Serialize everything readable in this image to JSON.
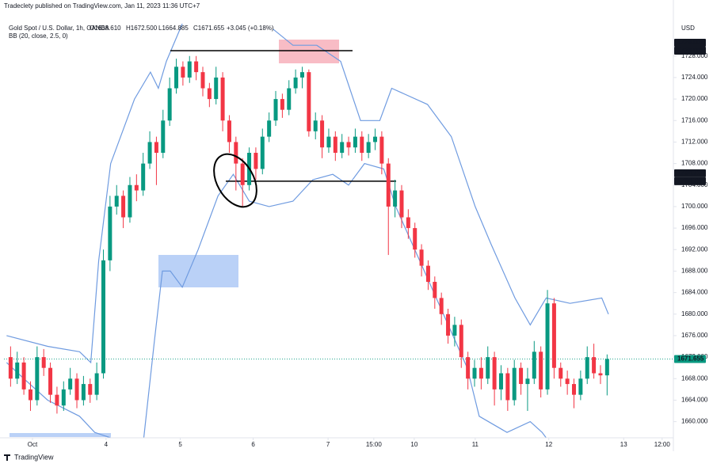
{
  "header": {
    "publisher": "Tradeclety published on TradingView.com, Jan 11, 2023 11:36 UTC+7",
    "symbol": "Gold Spot / U.S. Dollar, 1h, OANDA",
    "ohlc": [
      "O1668.610",
      "H1672.500",
      "L1664.885",
      "C1671.655",
      "+3.045 (+0.18%)"
    ],
    "currency": "USD",
    "footer": "TradingView"
  },
  "chart_data": {
    "type": "candlestick",
    "up_color": "#089981",
    "down_color": "#f23645",
    "grid": false,
    "open": [
      1672,
      1668,
      1671,
      1666,
      1664,
      1672,
      1670,
      1665,
      1663,
      1666,
      1668,
      1664,
      1667,
      1665,
      1669,
      1690,
      1700,
      1702,
      1698,
      1704,
      1703,
      1708,
      1712,
      1710,
      1716,
      1722,
      1726,
      1724,
      1727,
      1725,
      1722,
      1720,
      1724,
      1716,
      1712,
      1708,
      1704,
      1710,
      1707,
      1713,
      1716,
      1720,
      1718,
      1722,
      1724,
      1725,
      1714,
      1716,
      1711,
      1713,
      1710,
      1712,
      1711,
      1713,
      1710,
      1712,
      1713,
      1708,
      1700,
      1703,
      1698,
      1696,
      1692,
      1689,
      1686,
      1683,
      1680,
      1676,
      1678,
      1672,
      1668,
      1670,
      1668,
      1672,
      1666,
      1669,
      1664,
      1670,
      1667,
      1668,
      1673,
      1666,
      1682,
      1670,
      1668,
      1667,
      1665,
      1668,
      1672,
      1669,
      1668.61
    ],
    "high": [
      1674,
      1673,
      1672,
      1667.5,
      1674,
      1673.5,
      1671,
      1666.5,
      1667.5,
      1670,
      1669,
      1668.5,
      1668,
      1671,
      1692,
      1702,
      1704,
      1703,
      1705.5,
      1706,
      1710,
      1714,
      1713,
      1718,
      1724,
      1727.5,
      1727,
      1728,
      1728,
      1726,
      1723,
      1726,
      1725,
      1717,
      1713,
      1709,
      1711,
      1711,
      1714.5,
      1717.5,
      1721.5,
      1721,
      1723.5,
      1725.5,
      1726,
      1725.5,
      1717.5,
      1717,
      1714.5,
      1714,
      1713.5,
      1713,
      1714.5,
      1714,
      1713.5,
      1714.5,
      1714,
      1709,
      1705,
      1704,
      1699.5,
      1697,
      1693,
      1690,
      1687,
      1684,
      1681,
      1679.5,
      1679,
      1673,
      1671.5,
      1672,
      1674,
      1673,
      1670.5,
      1670,
      1671.5,
      1671,
      1670,
      1675,
      1674,
      1684.5,
      1683,
      1671,
      1669.5,
      1668,
      1669.5,
      1674,
      1674.5,
      1670.5,
      1672.5
    ],
    "low": [
      1666.5,
      1667,
      1665,
      1662,
      1663,
      1668.5,
      1663.5,
      1661.5,
      1662,
      1665,
      1662.5,
      1663,
      1663.5,
      1664,
      1668,
      1688,
      1698.5,
      1696,
      1697,
      1701,
      1702,
      1707,
      1704,
      1709,
      1715,
      1721,
      1722.5,
      1723,
      1723.5,
      1720.5,
      1718.5,
      1719,
      1714,
      1710,
      1703,
      1700,
      1703,
      1705,
      1706,
      1712,
      1715,
      1716.5,
      1717,
      1721,
      1722,
      1713,
      1712.5,
      1709,
      1710,
      1708.5,
      1709,
      1709.5,
      1710,
      1708.5,
      1709,
      1710.5,
      1706,
      1691,
      1698,
      1696,
      1694,
      1690.5,
      1687,
      1684.5,
      1681,
      1678,
      1674.5,
      1674,
      1670,
      1666,
      1666.5,
      1666,
      1667,
      1663,
      1664,
      1662,
      1663,
      1665,
      1662,
      1667,
      1664.5,
      1665,
      1668,
      1666.5,
      1665,
      1662.5,
      1664,
      1667,
      1668,
      1667,
      1664.885
    ],
    "close": [
      1668,
      1671,
      1666,
      1664,
      1672,
      1670,
      1665,
      1663,
      1666,
      1668,
      1664,
      1667,
      1665,
      1669,
      1690,
      1700,
      1702,
      1698,
      1704,
      1703,
      1708,
      1712,
      1710,
      1716,
      1722,
      1726,
      1724,
      1727,
      1725,
      1722,
      1720,
      1724,
      1716,
      1712,
      1708,
      1704,
      1710,
      1707,
      1713,
      1716,
      1720,
      1718,
      1722,
      1724,
      1725,
      1714,
      1716,
      1711,
      1713,
      1710,
      1712,
      1711,
      1713,
      1710,
      1712,
      1713,
      1708,
      1700,
      1703,
      1698,
      1696,
      1692,
      1689,
      1686,
      1683,
      1680,
      1676,
      1678,
      1672,
      1668,
      1670,
      1668,
      1672,
      1666,
      1669,
      1664,
      1670,
      1667,
      1668,
      1673,
      1666,
      1682,
      1670,
      1668,
      1667,
      1665,
      1668,
      1672,
      1669,
      1668.61,
      1671.655
    ],
    "bollinger": {
      "label": "BB (20, close, 2.5, 0)",
      "color": "#6f9be0",
      "upper": {
        "x": [
          -0.6,
          5.6,
          10.4,
          12.1,
          13.3,
          15.1,
          18.7,
          21.1,
          22.3,
          23.5,
          25.9,
          30,
          39.6,
          42.6,
          46.2,
          49.8,
          52.8,
          55.7,
          57.5,
          62.9,
          66.5,
          70.1,
          72.5,
          76.1,
          78.4,
          80.8,
          84.4,
          89.2,
          90.2
        ],
        "values": [
          1676,
          1674,
          1673,
          1671,
          1690,
          1708,
          1720,
          1725,
          1722,
          1727,
          1734,
          null,
          1733,
          1730,
          1730,
          1727,
          1716,
          1716,
          1722,
          1719,
          1713,
          1700,
          1693,
          1683,
          1678,
          1683,
          1682,
          1683,
          1680
        ]
      },
      "lower": {
        "x": [
          -0.6,
          2,
          5.6,
          10.4,
          12.7,
          15.1,
          17,
          20.1,
          21.7,
          22.9,
          24.1,
          25.9,
          28.3,
          31.3,
          33.6,
          36,
          39,
          42.6,
          45.6,
          48.6,
          51,
          53.4,
          56.3,
          58.1,
          61.7,
          65.3,
          68.9,
          70.7,
          74.9,
          78.4,
          80.2,
          80.8,
          85,
          89.9
        ],
        "values": [
          1671,
          1668,
          1664,
          1661,
          1658,
          1657,
          null,
          1657,
          1675,
          1688,
          1688,
          1685,
          1692,
          1702,
          1706,
          1701,
          1700,
          1701,
          1705,
          1706,
          1704,
          1708,
          1707,
          1700,
          1690,
          1680,
          1670,
          1661,
          1658,
          1660,
          1658,
          1657,
          null,
          1657
        ]
      }
    },
    "price_tags": [
      {
        "value": 1729.001,
        "color": "#131722"
      },
      {
        "value": 1729.001,
        "color": "#131722"
      },
      {
        "value": 1704.714,
        "color": "#131722"
      },
      {
        "value": 1704.714,
        "color": "#131722"
      },
      {
        "value": 1671.655,
        "color": "#089981"
      }
    ],
    "ylim": [
      1657,
      1734
    ],
    "yticks": [
      {
        "value": 1660,
        "label": "1660.000"
      },
      {
        "value": 1664,
        "label": "1664.000"
      },
      {
        "value": 1668,
        "label": "1668.000"
      },
      {
        "value": 1672,
        "label": "1672.000"
      },
      {
        "value": 1676,
        "label": "1676.000"
      },
      {
        "value": 1680,
        "label": "1680.000"
      },
      {
        "value": 1684,
        "label": "1684.000"
      },
      {
        "value": 1688,
        "label": "1688.000"
      },
      {
        "value": 1692,
        "label": "1692.000"
      },
      {
        "value": 1696,
        "label": "1696.000"
      },
      {
        "value": 1700,
        "label": "1700.000"
      },
      {
        "value": 1704,
        "label": "1704.000"
      },
      {
        "value": 1708,
        "label": "1708.000"
      },
      {
        "value": 1712,
        "label": "1712.000"
      },
      {
        "value": 1716,
        "label": "1716.000"
      },
      {
        "value": 1720,
        "label": "1720.000"
      },
      {
        "value": 1724,
        "label": "1724.000"
      },
      {
        "value": 1728,
        "label": "1728.000"
      }
    ],
    "xlim": [
      -1,
      100
    ],
    "xticks": [
      {
        "value": 3.3,
        "label": "Oct"
      },
      {
        "value": 14.4,
        "label": "4"
      },
      {
        "value": 25.6,
        "label": "5"
      },
      {
        "value": 36.6,
        "label": "6"
      },
      {
        "value": 47.9,
        "label": "7"
      },
      {
        "value": 54.8,
        "label": "15:00"
      },
      {
        "value": 60.9,
        "label": "10"
      },
      {
        "value": 70.1,
        "label": "11"
      },
      {
        "value": 81.2,
        "label": "12"
      },
      {
        "value": 92.5,
        "label": "13"
      },
      {
        "value": 98.3,
        "label": "12:00"
      }
    ]
  }
}
